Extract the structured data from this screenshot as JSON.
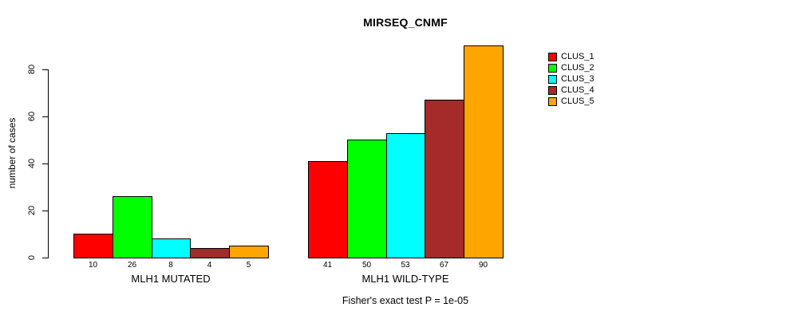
{
  "chart_data": {
    "type": "bar",
    "title": "MIRSEQ_CNMF",
    "ylabel": "number of cases",
    "xlabel": "",
    "ylim": [
      0,
      90
    ],
    "yticks": [
      0,
      20,
      40,
      60,
      80
    ],
    "grid": false,
    "legend_position": "right",
    "bar_value_labels_shown": true,
    "categories": [
      "MLH1 MUTATED",
      "MLH1 WILD-TYPE"
    ],
    "series": [
      {
        "name": "CLUS_1",
        "color": "#ff0000",
        "values": [
          10,
          41
        ]
      },
      {
        "name": "CLUS_2",
        "color": "#00ff00",
        "values": [
          26,
          50
        ]
      },
      {
        "name": "CLUS_3",
        "color": "#00ffff",
        "values": [
          8,
          53
        ]
      },
      {
        "name": "CLUS_4",
        "color": "#a52a2a",
        "values": [
          4,
          67
        ]
      },
      {
        "name": "CLUS_5",
        "color": "#ffa500",
        "values": [
          5,
          90
        ]
      }
    ],
    "footnote": "Fisher's exact test P = 1e-05"
  },
  "colors": {
    "background": "#ffffff",
    "axis": "#000000",
    "text": "#000000"
  }
}
